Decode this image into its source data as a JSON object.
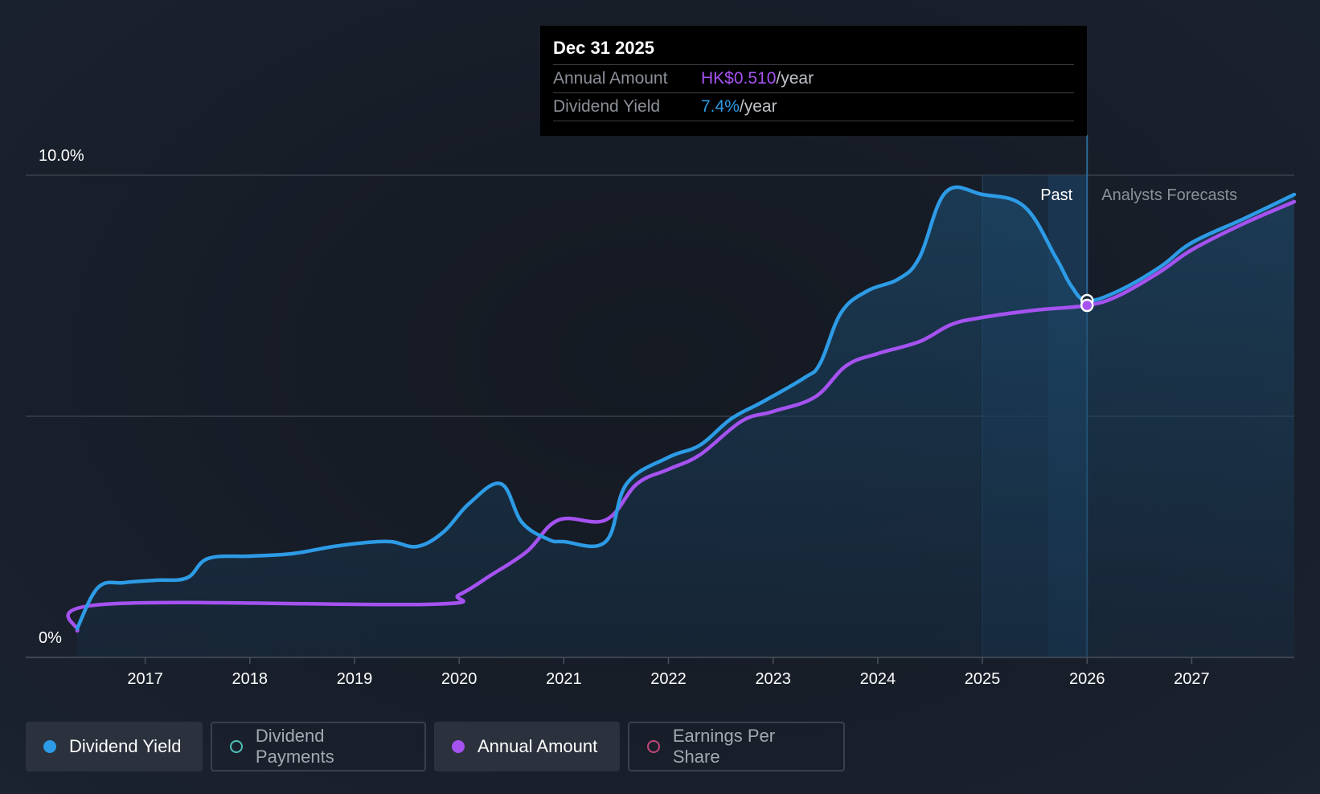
{
  "tooltip": {
    "date": "Dec 31 2025",
    "annual_label": "Annual Amount",
    "annual_value": "HK$0.510",
    "yield_label": "Dividend Yield",
    "yield_value": "7.4%",
    "unit": "/year"
  },
  "regions": {
    "past": "Past",
    "forecast": "Analysts Forecasts"
  },
  "legend": [
    {
      "label": "Dividend Yield",
      "active": true,
      "color": "#2d9be6",
      "filled": true
    },
    {
      "label": "Dividend Payments",
      "active": false,
      "color": "#4fc1b8",
      "filled": false
    },
    {
      "label": "Annual Amount",
      "active": true,
      "color": "#a552f0",
      "filled": true
    },
    {
      "label": "Earnings Per Share",
      "active": false,
      "color": "#c2477a",
      "filled": false
    }
  ],
  "chart_data": {
    "type": "line",
    "y_ticks": [
      "0%",
      "10.0%"
    ],
    "ylim": [
      0,
      10
    ],
    "x_ticks": [
      "2017",
      "2018",
      "2019",
      "2020",
      "2021",
      "2022",
      "2023",
      "2024",
      "2025",
      "2026",
      "2027"
    ],
    "xlim": [
      2016.35,
      2027.98
    ],
    "past_end": 2026.0,
    "series": [
      {
        "name": "Dividend Yield",
        "color": "#2d9be6",
        "points": [
          [
            2016.35,
            0.6
          ],
          [
            2016.55,
            1.45
          ],
          [
            2016.8,
            1.55
          ],
          [
            2017.1,
            1.6
          ],
          [
            2017.4,
            1.65
          ],
          [
            2017.6,
            2.05
          ],
          [
            2018.0,
            2.1
          ],
          [
            2018.4,
            2.15
          ],
          [
            2018.8,
            2.3
          ],
          [
            2019.1,
            2.38
          ],
          [
            2019.35,
            2.4
          ],
          [
            2019.6,
            2.3
          ],
          [
            2019.85,
            2.6
          ],
          [
            2020.1,
            3.2
          ],
          [
            2020.4,
            3.6
          ],
          [
            2020.6,
            2.8
          ],
          [
            2020.85,
            2.45
          ],
          [
            2021.0,
            2.4
          ],
          [
            2021.4,
            2.4
          ],
          [
            2021.6,
            3.6
          ],
          [
            2022.0,
            4.15
          ],
          [
            2022.3,
            4.4
          ],
          [
            2022.6,
            4.95
          ],
          [
            2022.9,
            5.3
          ],
          [
            2023.3,
            5.8
          ],
          [
            2023.45,
            6.1
          ],
          [
            2023.65,
            7.15
          ],
          [
            2023.9,
            7.6
          ],
          [
            2024.2,
            7.85
          ],
          [
            2024.4,
            8.3
          ],
          [
            2024.65,
            9.65
          ],
          [
            2025.0,
            9.6
          ],
          [
            2025.4,
            9.35
          ],
          [
            2025.7,
            8.3
          ],
          [
            2025.85,
            7.7
          ],
          [
            2026.0,
            7.4
          ],
          [
            2026.3,
            7.6
          ],
          [
            2026.7,
            8.1
          ],
          [
            2027.0,
            8.6
          ],
          [
            2027.5,
            9.1
          ],
          [
            2027.98,
            9.6
          ]
        ]
      },
      {
        "name": "Annual Amount",
        "color": "#a552f0",
        "points": [
          [
            2016.35,
            0.55
          ],
          [
            2016.6,
            1.1
          ],
          [
            2019.7,
            1.1
          ],
          [
            2020.0,
            1.3
          ],
          [
            2020.3,
            1.7
          ],
          [
            2020.65,
            2.2
          ],
          [
            2020.95,
            2.85
          ],
          [
            2021.4,
            2.85
          ],
          [
            2021.7,
            3.6
          ],
          [
            2022.0,
            3.9
          ],
          [
            2022.3,
            4.2
          ],
          [
            2022.7,
            4.9
          ],
          [
            2023.0,
            5.1
          ],
          [
            2023.4,
            5.4
          ],
          [
            2023.7,
            6.05
          ],
          [
            2024.0,
            6.3
          ],
          [
            2024.4,
            6.55
          ],
          [
            2024.7,
            6.9
          ],
          [
            2025.0,
            7.05
          ],
          [
            2025.5,
            7.2
          ],
          [
            2026.0,
            7.3
          ],
          [
            2026.3,
            7.5
          ],
          [
            2026.7,
            8.0
          ],
          [
            2027.0,
            8.45
          ],
          [
            2027.5,
            9.0
          ],
          [
            2027.98,
            9.45
          ]
        ]
      }
    ]
  }
}
